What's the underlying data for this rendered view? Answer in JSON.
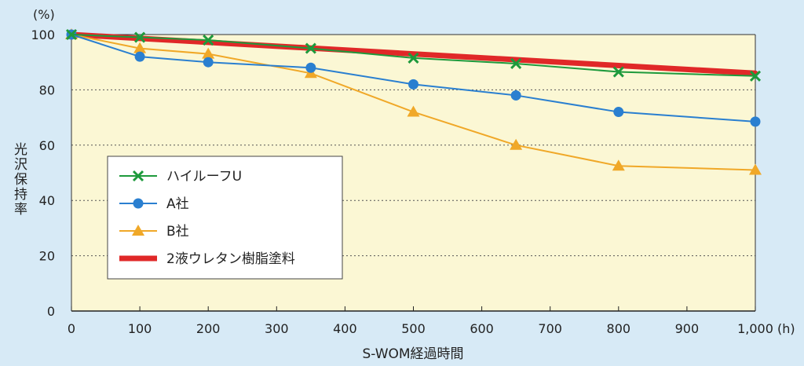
{
  "chart_data": {
    "type": "line",
    "ylabel": "光沢保持率",
    "yunit": "(%)",
    "xlabel": "S-WOM経過時間",
    "xunit": "(h)",
    "xlim": [
      0,
      1000
    ],
    "ylim": [
      0,
      100
    ],
    "xticks": [
      0,
      100,
      200,
      300,
      400,
      500,
      600,
      700,
      800,
      900,
      1000
    ],
    "xtick_labels": [
      "0",
      "100",
      "200",
      "300",
      "400",
      "500",
      "600",
      "700",
      "800",
      "900",
      "1,000"
    ],
    "yticks": [
      0,
      20,
      40,
      60,
      80,
      100
    ],
    "ytick_labels": [
      "0",
      "20",
      "40",
      "60",
      "80",
      "100"
    ],
    "grid": "horizontal dotted",
    "legend_position": "left",
    "series": [
      {
        "name": "ハイルーフU",
        "marker": "x",
        "color": "#1e9a3c",
        "x": [
          0,
          100,
          200,
          350,
          500,
          650,
          800,
          1000
        ],
        "y": [
          100,
          99,
          98,
          95,
          91.5,
          89.5,
          86.5,
          85
        ]
      },
      {
        "name": "A社",
        "marker": "circle",
        "color": "#2a7fd0",
        "x": [
          0,
          100,
          200,
          350,
          500,
          650,
          800,
          1000
        ],
        "y": [
          100,
          92,
          90,
          88,
          82,
          78,
          72,
          68.5
        ]
      },
      {
        "name": "B社",
        "marker": "triangle",
        "color": "#f0a828",
        "x": [
          0,
          100,
          200,
          350,
          500,
          650,
          800,
          1000
        ],
        "y": [
          100,
          95,
          93,
          86,
          72,
          60,
          52.5,
          51
        ]
      },
      {
        "name": "2液ウレタン樹脂塗料",
        "marker": "none",
        "color": "#e02828",
        "x": [
          0,
          1000
        ],
        "y": [
          100,
          86
        ]
      }
    ]
  }
}
